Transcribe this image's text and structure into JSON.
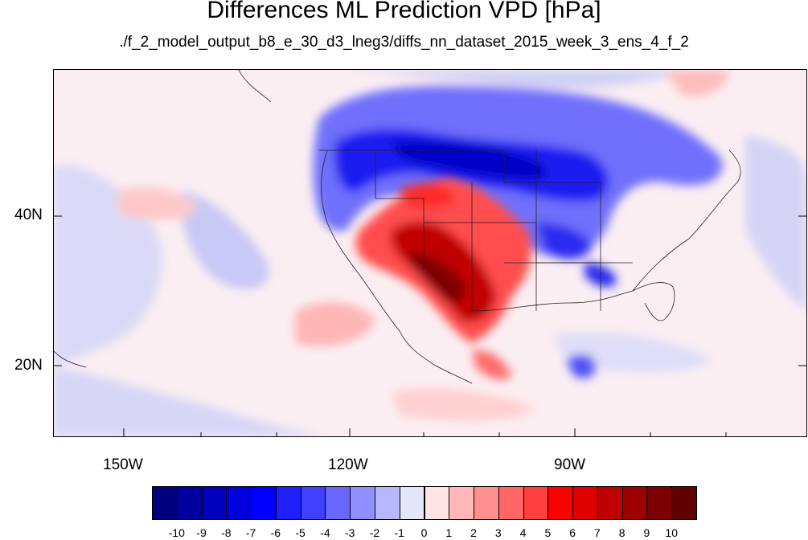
{
  "title": "Differences ML Prediction VPD [hPa]",
  "subtitle": "./f_2_model_output_b8_e_30_d3_lneg3/diffs_nn_dataset_2015_week_3_ens_4_f_2",
  "axes": {
    "lon_ticks": [
      "150W",
      "120W",
      "90W"
    ],
    "lat_ticks": [
      "40N",
      "20N"
    ]
  },
  "colorbar": {
    "labels": [
      "-10",
      "-9",
      "-8",
      "-7",
      "-6",
      "-5",
      "-4",
      "-3",
      "-2",
      "-1",
      "0",
      "1",
      "2",
      "3",
      "4",
      "5",
      "6",
      "7",
      "8",
      "9",
      "10"
    ],
    "colors": [
      "#00007f",
      "#00009f",
      "#0000bf",
      "#0000df",
      "#0000ff",
      "#1f1fff",
      "#3f3fff",
      "#6767ff",
      "#8f8fff",
      "#b7b7ff",
      "#e6e6fa",
      "#ffe4e4",
      "#ffb7b7",
      "#ff8f8f",
      "#ff6767",
      "#ff3f3f",
      "#ff0000",
      "#df0000",
      "#bf0000",
      "#9f0000",
      "#7f0000",
      "#600000"
    ]
  }
}
